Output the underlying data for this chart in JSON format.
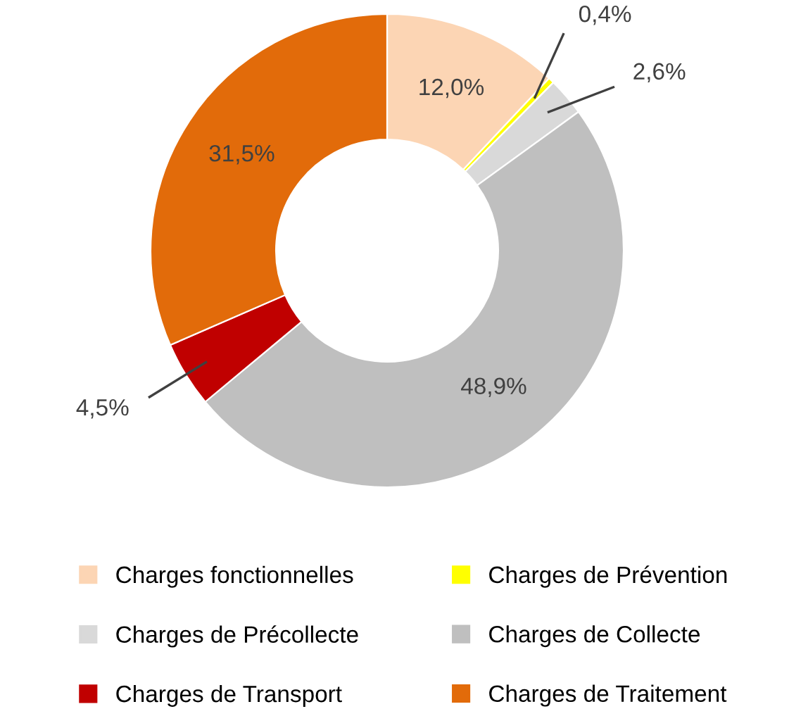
{
  "chart_data": {
    "type": "donut",
    "categories": [
      "Charges fonctionnelles",
      "Charges de Prévention",
      "Charges de Précollecte",
      "Charges de Collecte",
      "Charges de Transport",
      "Charges de Traitement"
    ],
    "values": [
      12.0,
      0.4,
      2.6,
      48.9,
      4.5,
      31.5
    ],
    "value_labels": [
      "12,0%",
      "0,4%",
      "2,6%",
      "48,9%",
      "4,5%",
      "31,5%"
    ],
    "colors": [
      "#fcd5b4",
      "#ffff00",
      "#d9d9d9",
      "#bfbfbf",
      "#c00000",
      "#e26b0a"
    ],
    "legend": "bottom"
  }
}
